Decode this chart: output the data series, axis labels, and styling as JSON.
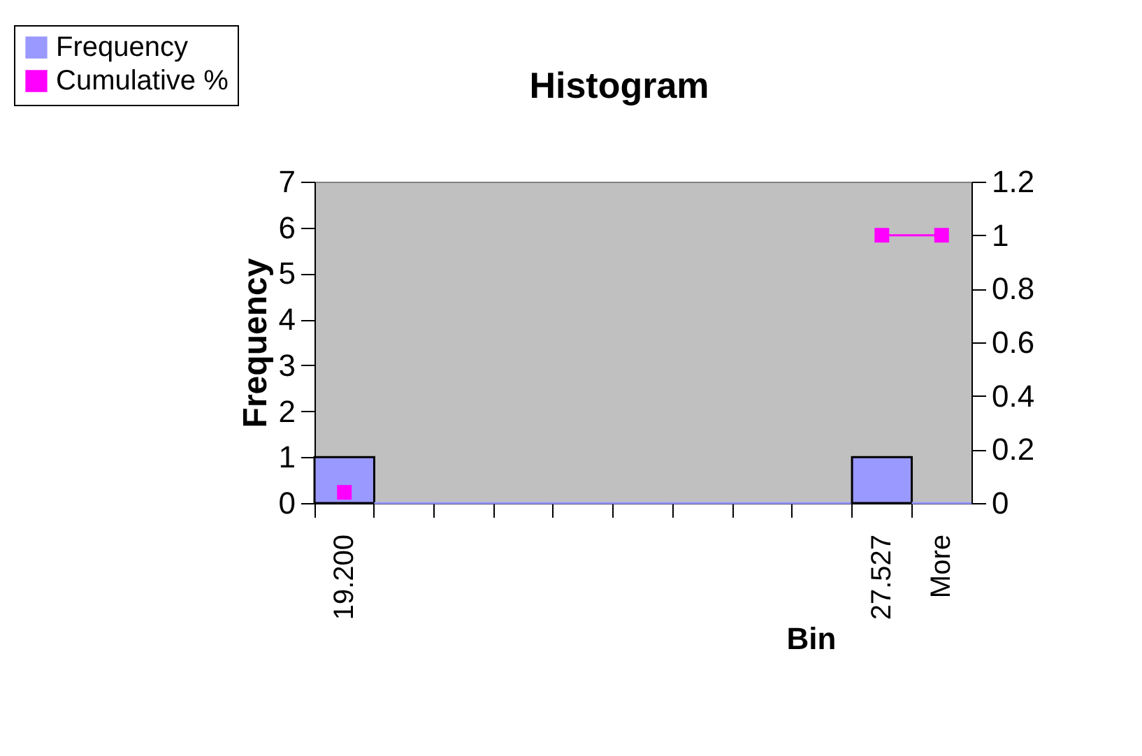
{
  "chart_data": {
    "type": "bar",
    "title": "Histogram",
    "xlabel": "Bin",
    "ylabel": "Frequency",
    "categories": [
      "19.200",
      null,
      null,
      null,
      null,
      null,
      null,
      null,
      null,
      "27.527",
      "More"
    ],
    "series": [
      {
        "name": "Frequency",
        "color": "#9999ff",
        "values": [
          1,
          0,
          0,
          0,
          0,
          0,
          0,
          0,
          0,
          1,
          0
        ]
      },
      {
        "name": "Cumulative %",
        "type": "line",
        "axis": "y2",
        "color": "#ff00ff",
        "marker": "square",
        "values": [
          0.04,
          null,
          null,
          null,
          null,
          null,
          null,
          null,
          null,
          1,
          1
        ]
      }
    ],
    "ylim": [
      0,
      7
    ],
    "yticks": [
      0,
      1,
      2,
      3,
      4,
      5,
      6,
      7
    ],
    "y2lim": [
      0,
      1.2
    ],
    "y2ticks": [
      0,
      0.2,
      0.4,
      0.6,
      0.8,
      1,
      1.2
    ],
    "legend": "top left",
    "grid": false
  }
}
